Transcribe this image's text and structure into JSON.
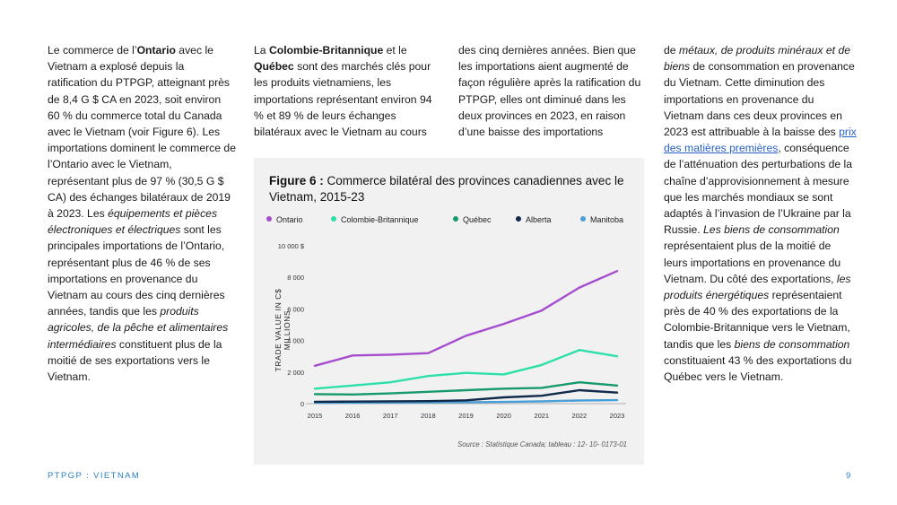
{
  "columns": {
    "col1": [
      {
        "t": "Le commerce de l’"
      },
      {
        "t": "Ontario",
        "b": true
      },
      {
        "t": " avec le Vietnam a explosé depuis la ratification du PTPGP, atteignant près de 8,4 G $ CA en 2023, soit environ 60 % du commerce total du Canada avec le Vietnam (voir Figure 6). Les importations dominent le commerce de l’Ontario avec le Vietnam, représentant plus de 97 % (30,5 G $ CA) des échanges bilatéraux de 2019 à 2023. Les "
      },
      {
        "t": "équipements et pièces électroniques et électriques",
        "i": true
      },
      {
        "t": " sont les principales importations de l’Ontario, représentant plus de 46 % de ses importations en provenance du Vietnam au cours des cinq dernières années, tandis que les "
      },
      {
        "t": "produits agricoles, de la pêche et alimentaires intermédiaires",
        "i": true
      },
      {
        "t": " constituent plus de la moitié de ses exportations vers le Vietnam."
      }
    ],
    "col2": [
      {
        "t": "La "
      },
      {
        "t": "Colombie-Britannique",
        "b": true
      },
      {
        "t": " et le "
      },
      {
        "t": "Québec",
        "b": true
      },
      {
        "t": " sont des marchés clés pour les produits vietnamiens, les importations représentant environ 94 % et 89 % de leurs échanges bilatéraux avec le Vietnam au cours"
      }
    ],
    "col3": [
      {
        "t": "des cinq dernières années. Bien que les importations aient augmenté de façon régulière après la ratification du PTPGP, elles ont diminué dans les deux provinces en 2023, en raison d’une baisse des importations"
      }
    ],
    "col4": [
      {
        "t": "de "
      },
      {
        "t": "métaux, de produits minéraux et de biens",
        "i": true
      },
      {
        "t": " de consommation en provenance du Vietnam. Cette diminution des importations en provenance du Vietnam dans ces deux provinces en 2023 est attribuable à la baisse des "
      },
      {
        "t": "prix des matières premières",
        "link": true
      },
      {
        "t": ", conséquence de l’atténuation des perturbations de la chaîne d’approvisionnement à mesure que les marchés mondiaux se sont adaptés à l’invasion de l’Ukraine par la Russie. "
      },
      {
        "t": "Les biens de consommation",
        "i": true
      },
      {
        "t": " représentaient plus de la moitié de leurs importations en provenance du Vietnam. Du côté des exportations, "
      },
      {
        "t": "les produits énergétiques",
        "i": true
      },
      {
        "t": " représentaient près de 40 % des exportations de la Colombie-Britannique vers le Vietnam, tandis que les "
      },
      {
        "t": "biens de consommation",
        "i": true
      },
      {
        "t": " constituaient 43 % des exportations du Québec vers le Vietnam."
      }
    ]
  },
  "figure": {
    "label": "Figure 6 :",
    "title": "Commerce bilatéral des provinces canadiennes avec le Vietnam, 2015-23",
    "source": "Source : Statistique Canada; tableau : 12- 10- 0173-01"
  },
  "chart_data": {
    "type": "line",
    "x": [
      "2015",
      "2016",
      "2017",
      "2018",
      "2019",
      "2020",
      "2021",
      "2022",
      "2023"
    ],
    "ylabel": "TRADE VALUE IN C$ MILLIONS",
    "ylim": [
      0,
      10000
    ],
    "yticks": [
      0,
      2000,
      4000,
      6000,
      8000,
      10000
    ],
    "ytick_labels": [
      "0",
      "2 000",
      "4 000",
      "6 000",
      "8 000",
      "10 000 $"
    ],
    "grid": false,
    "legend_position": "top",
    "series": [
      {
        "name": "Ontario",
        "color": "#a64dcf",
        "values": [
          2400,
          3050,
          3100,
          3200,
          4300,
          5050,
          5900,
          7350,
          8400
        ]
      },
      {
        "name": "Colombie-Britannique",
        "color": "#2de0a9",
        "values": [
          950,
          1150,
          1350,
          1750,
          1950,
          1850,
          2450,
          3400,
          3000
        ]
      },
      {
        "name": "Québec",
        "color": "#16996b",
        "values": [
          600,
          580,
          650,
          750,
          850,
          950,
          1000,
          1350,
          1150
        ]
      },
      {
        "name": "Alberta",
        "color": "#0f2a4a",
        "values": [
          120,
          130,
          150,
          160,
          210,
          400,
          500,
          850,
          700
        ]
      },
      {
        "name": "Manitoba",
        "color": "#4a9fd8",
        "values": [
          50,
          60,
          70,
          80,
          90,
          110,
          140,
          200,
          220
        ]
      }
    ]
  },
  "footer": {
    "left": "PTPGP : VIETNAM",
    "page": "9"
  }
}
